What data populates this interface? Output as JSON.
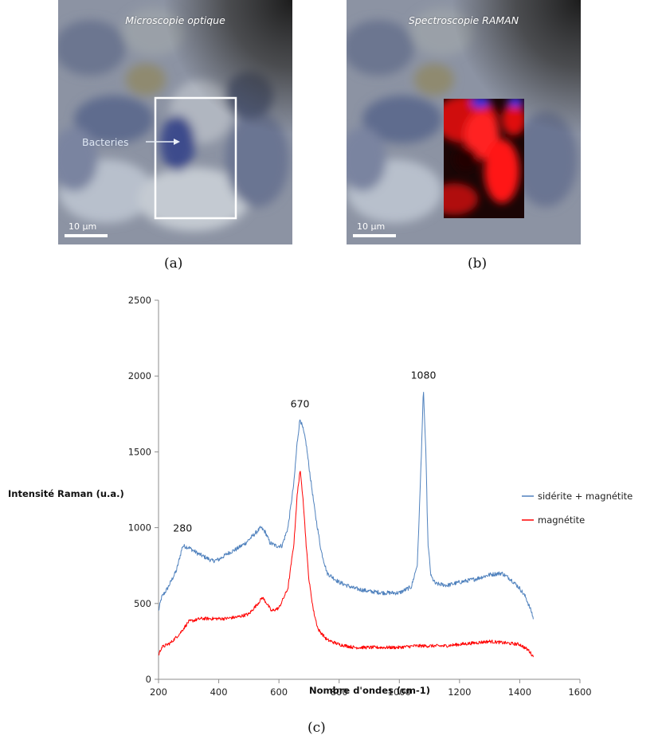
{
  "panel_a": {
    "title": "Microscopie optique",
    "label": "Bacteries",
    "scale": "10 µm",
    "caption": "(a)"
  },
  "panel_b": {
    "title": "Spectroscopie RAMAN",
    "scale": "10 µm",
    "caption": "(b)"
  },
  "caption_c": "(c)",
  "colors": {
    "siderite_magnetite": "#4f81bd",
    "magnetite": "#ff0000",
    "raman_red": "#e31010",
    "raman_blue": "#3a2fd8"
  },
  "chart_data": {
    "type": "line",
    "xlabel": "Nombre d'ondes (cm-1)",
    "ylabel": "Intensité Raman  (u.a.)",
    "xlim": [
      200,
      1600
    ],
    "ylim": [
      0,
      2500
    ],
    "xticks": [
      200,
      400,
      600,
      800,
      1000,
      1200,
      1400,
      1600
    ],
    "yticks": [
      0,
      500,
      1000,
      1500,
      2000,
      2500
    ],
    "grid": false,
    "legend_position": "right",
    "annotations": [
      {
        "text": "280",
        "x": 280,
        "y": 900
      },
      {
        "text": "670",
        "x": 670,
        "y": 1720
      },
      {
        "text": "1080",
        "x": 1080,
        "y": 1910
      }
    ],
    "series": [
      {
        "name": "sidérite + magnétite",
        "color": "#4f81bd",
        "points": [
          [
            200,
            450
          ],
          [
            210,
            540
          ],
          [
            230,
            600
          ],
          [
            260,
            720
          ],
          [
            280,
            880
          ],
          [
            300,
            870
          ],
          [
            330,
            830
          ],
          [
            360,
            800
          ],
          [
            380,
            780
          ],
          [
            400,
            790
          ],
          [
            430,
            830
          ],
          [
            460,
            860
          ],
          [
            490,
            900
          ],
          [
            520,
            960
          ],
          [
            540,
            1000
          ],
          [
            555,
            970
          ],
          [
            570,
            900
          ],
          [
            590,
            880
          ],
          [
            610,
            880
          ],
          [
            630,
            1000
          ],
          [
            650,
            1300
          ],
          [
            660,
            1550
          ],
          [
            670,
            1720
          ],
          [
            680,
            1650
          ],
          [
            690,
            1560
          ],
          [
            700,
            1400
          ],
          [
            720,
            1100
          ],
          [
            740,
            850
          ],
          [
            760,
            700
          ],
          [
            800,
            640
          ],
          [
            850,
            600
          ],
          [
            900,
            580
          ],
          [
            950,
            570
          ],
          [
            1000,
            570
          ],
          [
            1040,
            610
          ],
          [
            1060,
            760
          ],
          [
            1070,
            1300
          ],
          [
            1080,
            1910
          ],
          [
            1088,
            1500
          ],
          [
            1095,
            900
          ],
          [
            1105,
            680
          ],
          [
            1120,
            630
          ],
          [
            1160,
            620
          ],
          [
            1200,
            640
          ],
          [
            1250,
            660
          ],
          [
            1300,
            690
          ],
          [
            1340,
            700
          ],
          [
            1370,
            660
          ],
          [
            1400,
            600
          ],
          [
            1420,
            540
          ],
          [
            1440,
            440
          ],
          [
            1445,
            400
          ]
        ]
      },
      {
        "name": "magnétite",
        "color": "#ff0000",
        "points": [
          [
            200,
            160
          ],
          [
            210,
            210
          ],
          [
            240,
            240
          ],
          [
            270,
            300
          ],
          [
            300,
            380
          ],
          [
            340,
            400
          ],
          [
            380,
            400
          ],
          [
            420,
            400
          ],
          [
            460,
            410
          ],
          [
            500,
            430
          ],
          [
            530,
            500
          ],
          [
            545,
            540
          ],
          [
            560,
            500
          ],
          [
            575,
            450
          ],
          [
            600,
            470
          ],
          [
            630,
            600
          ],
          [
            650,
            900
          ],
          [
            660,
            1200
          ],
          [
            670,
            1380
          ],
          [
            680,
            1200
          ],
          [
            690,
            900
          ],
          [
            700,
            650
          ],
          [
            715,
            450
          ],
          [
            730,
            330
          ],
          [
            760,
            260
          ],
          [
            800,
            230
          ],
          [
            850,
            210
          ],
          [
            900,
            210
          ],
          [
            950,
            210
          ],
          [
            1000,
            210
          ],
          [
            1050,
            220
          ],
          [
            1100,
            220
          ],
          [
            1150,
            220
          ],
          [
            1200,
            230
          ],
          [
            1250,
            240
          ],
          [
            1300,
            250
          ],
          [
            1350,
            240
          ],
          [
            1400,
            230
          ],
          [
            1430,
            190
          ],
          [
            1445,
            150
          ]
        ]
      }
    ]
  }
}
